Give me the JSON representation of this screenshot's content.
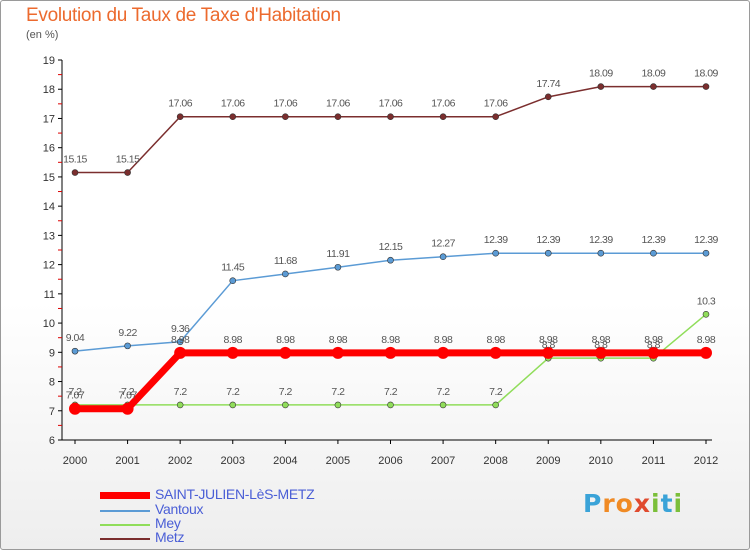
{
  "title": "Evolution du Taux de Taxe d'Habitation",
  "subtitle": "(en %)",
  "logo": {
    "letters": [
      "P",
      "r",
      "o",
      "x",
      "i",
      "t",
      "i"
    ],
    "colors": [
      "#3aa3d8",
      "#f08a24",
      "#f08a24",
      "#e04a2e",
      "#7bbf3a",
      "#3aa3d8",
      "#7bbf3a"
    ]
  },
  "chart_data": {
    "type": "line",
    "x": [
      2000,
      2001,
      2002,
      2003,
      2004,
      2005,
      2006,
      2007,
      2008,
      2009,
      2010,
      2011,
      2012
    ],
    "ylim": [
      6,
      19
    ],
    "yticks": [
      6,
      7,
      8,
      9,
      10,
      11,
      12,
      13,
      14,
      15,
      16,
      17,
      18,
      19
    ],
    "grid": false,
    "legend": "bottom-left",
    "series": [
      {
        "name": "SAINT-JULIEN-LèS-METZ",
        "color": "#ff0000",
        "width": 7,
        "marker": 6,
        "values": [
          7.07,
          7.07,
          8.98,
          8.98,
          8.98,
          8.98,
          8.98,
          8.98,
          8.98,
          8.98,
          8.98,
          8.98,
          8.98
        ],
        "labels": [
          "7.07",
          "7.07",
          "8.98",
          "8.98",
          "8.98",
          "8.98",
          "8.98",
          "8.98",
          "8.98",
          "8.98",
          "8.98",
          "8.98",
          "8.98"
        ]
      },
      {
        "name": "Vantoux",
        "color": "#5b9bd5",
        "width": 1.5,
        "marker": 3,
        "values": [
          9.04,
          9.22,
          9.36,
          11.45,
          11.68,
          11.91,
          12.15,
          12.27,
          12.39,
          12.39,
          12.39,
          12.39,
          12.39
        ],
        "labels": [
          "9.04",
          "9.22",
          "9.36",
          "11.45",
          "11.68",
          "11.91",
          "12.15",
          "12.27",
          "12.39",
          "12.39",
          "12.39",
          "12.39",
          "12.39"
        ]
      },
      {
        "name": "Mey",
        "color": "#90dd5a",
        "width": 1.5,
        "marker": 3,
        "values": [
          7.2,
          7.2,
          7.2,
          7.2,
          7.2,
          7.2,
          7.2,
          7.2,
          7.2,
          8.8,
          8.8,
          8.8,
          10.3
        ],
        "labels": [
          "7.2",
          "7.2",
          "7.2",
          "7.2",
          "7.2",
          "7.2",
          "7.2",
          "7.2",
          "7.2",
          "8.8",
          "8.8",
          "8.8",
          "10.3"
        ]
      },
      {
        "name": "Metz",
        "color": "#7b2e2e",
        "width": 1.5,
        "marker": 3,
        "values": [
          15.15,
          15.15,
          17.06,
          17.06,
          17.06,
          17.06,
          17.06,
          17.06,
          17.06,
          17.74,
          18.09,
          18.09,
          18.09
        ],
        "labels": [
          "15.15",
          "15.15",
          "17.06",
          "17.06",
          "17.06",
          "17.06",
          "17.06",
          "17.06",
          "17.06",
          "17.74",
          "18.09",
          "18.09",
          "18.09"
        ]
      }
    ]
  }
}
